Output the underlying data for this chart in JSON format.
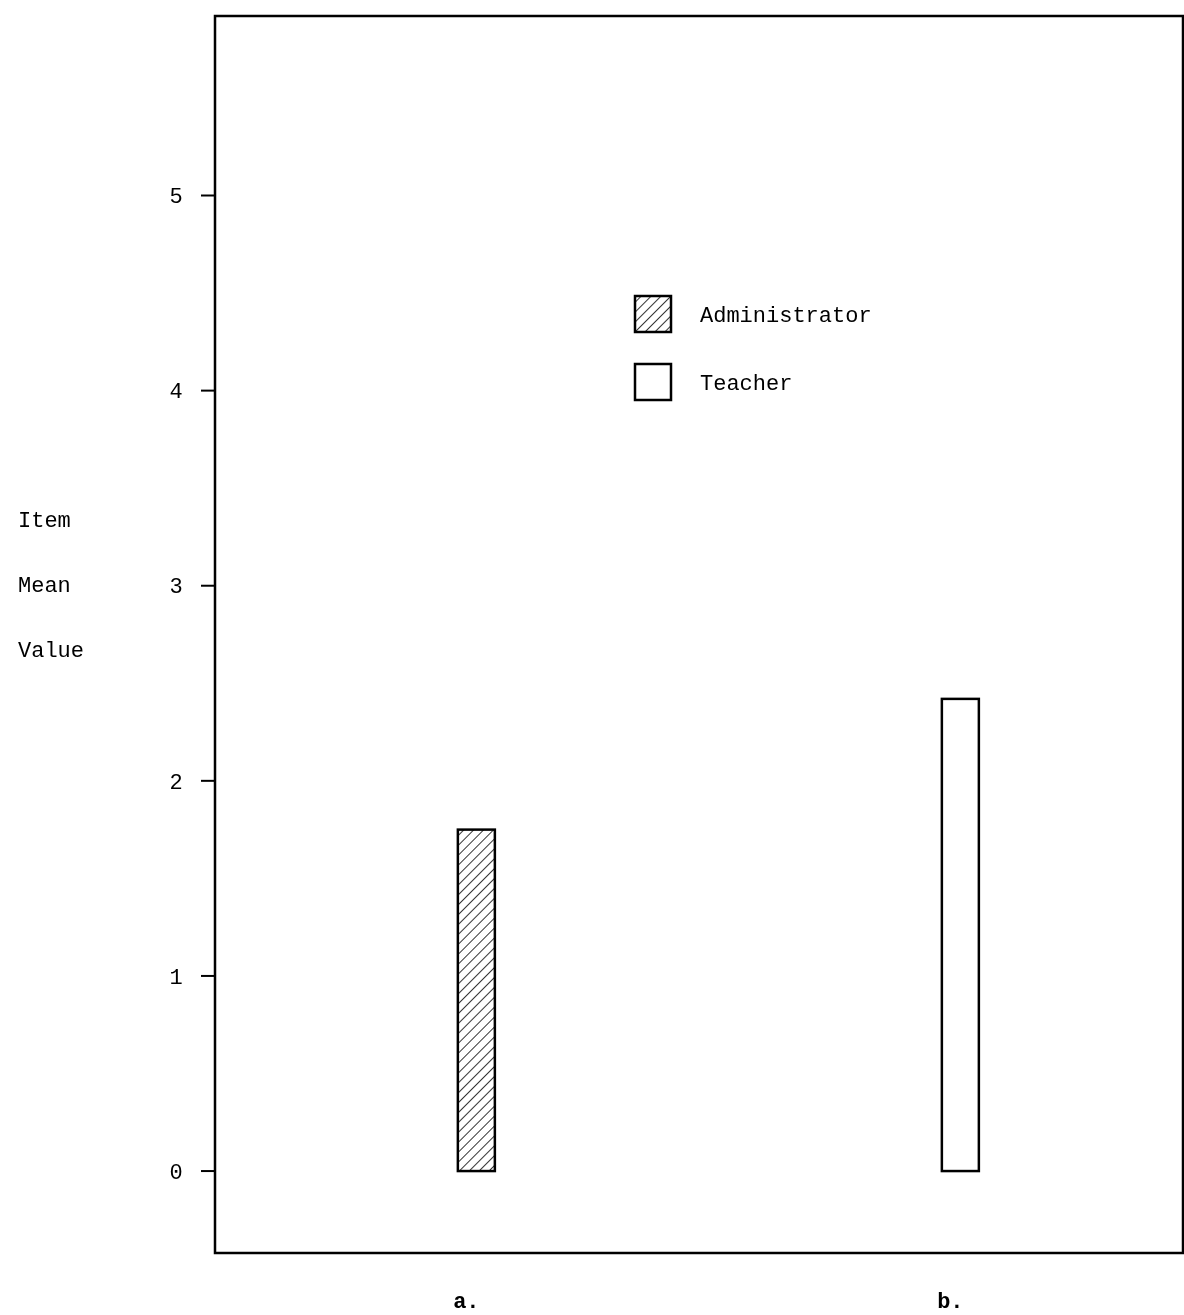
{
  "chart_data": {
    "type": "bar",
    "ylabel": "Item Mean Value",
    "categories": [
      "a.",
      "b."
    ],
    "series": [
      {
        "name": "Administrator",
        "color": "#000000",
        "values": [
          1.75,
          null
        ]
      },
      {
        "name": "Teacher",
        "color": "#ffffff",
        "values": [
          null,
          2.42
        ]
      }
    ],
    "ylim": [
      -0.42,
      5.92
    ],
    "yticks": [
      0,
      1,
      2,
      3,
      4,
      5
    ],
    "grid": false,
    "legend": "top"
  }
}
